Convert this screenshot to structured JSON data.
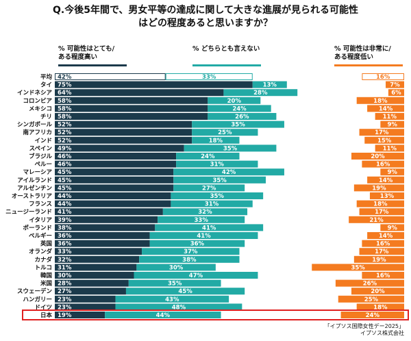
{
  "title_line1": "Q.今後5年間で、男女平等の達成に関して大きな進展が見られる可能性",
  "title_line2": "はどの程度あると思いますか？",
  "source_line1": "「イプソス国際女性デー2025」",
  "source_line2": "イプソス株式会社",
  "colors": {
    "high": "#1b3a4b",
    "neutral": "#22aaa5",
    "low": "#f47b20",
    "highlight": "#e02020"
  },
  "chart_data": {
    "type": "bar",
    "orientation": "horizontal-stacked-100",
    "categories": [
      "平均",
      "タイ",
      "インドネシア",
      "コロンビア",
      "メキシコ",
      "チリ",
      "シンガポール",
      "南アフリカ",
      "インド",
      "スペイン",
      "ブラジル",
      "ペルー",
      "マレーシア",
      "アイルランド",
      "アルゼンチン",
      "オーストラリア",
      "フランス",
      "ニュージーランド",
      "イタリア",
      "ポーランド",
      "ベルギー",
      "英国",
      "オランダ",
      "カナダ",
      "トルコ",
      "韓国",
      "米国",
      "スウェーデン",
      "ハンガリー",
      "ドイツ",
      "日本"
    ],
    "series": [
      {
        "name": "% 可能性はとても/ある程度高い",
        "values": [
          42,
          75,
          64,
          58,
          58,
          58,
          52,
          52,
          52,
          49,
          46,
          46,
          45,
          45,
          45,
          44,
          44,
          41,
          39,
          38,
          36,
          36,
          33,
          32,
          31,
          30,
          28,
          27,
          23,
          23,
          19
        ]
      },
      {
        "name": "% どちらとも言えない",
        "values": [
          33,
          13,
          28,
          20,
          24,
          26,
          35,
          25,
          18,
          35,
          24,
          31,
          42,
          35,
          27,
          35,
          31,
          32,
          33,
          41,
          41,
          36,
          37,
          38,
          30,
          47,
          35,
          45,
          43,
          48,
          44
        ]
      },
      {
        "name": "% 可能性は非常に/ある程度低い",
        "values": [
          16,
          7,
          6,
          18,
          14,
          11,
          9,
          17,
          15,
          11,
          20,
          16,
          9,
          14,
          19,
          13,
          18,
          17,
          21,
          9,
          14,
          16,
          17,
          19,
          35,
          16,
          26,
          20,
          25,
          18,
          24
        ]
      }
    ],
    "series_labels": [
      [
        "% 可能性はとても/",
        "ある程度高い"
      ],
      [
        "% どちらとも言えない"
      ],
      [
        "% 可能性は非常に/",
        "ある程度低い"
      ]
    ],
    "outlined_category": "平均",
    "highlighted_category": "日本"
  }
}
